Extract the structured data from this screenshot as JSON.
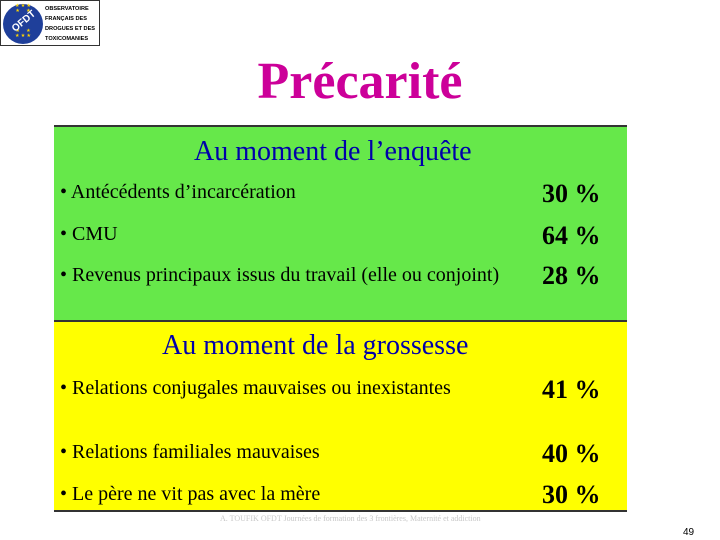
{
  "logo": {
    "monogram": "OFDT",
    "lines": [
      "OBSERVATOIRE",
      "FRANÇAIS DES",
      "DROGUES ET DES",
      "TOXICOMANIES"
    ]
  },
  "title": "Précarité",
  "sections": [
    {
      "heading": "Au moment de l’enquête",
      "items": [
        {
          "label": "• Antécédents d’incarcération",
          "value": "30 %"
        },
        {
          "label": "• CMU",
          "value": "64 %"
        },
        {
          "label": "• Revenus principaux issus du travail (elle ou conjoint)",
          "value": "28 %"
        }
      ]
    },
    {
      "heading": "Au moment de la grossesse",
      "items": [
        {
          "label": "• Relations conjugales mauvaises ou inexistantes",
          "value": "41 %"
        },
        {
          "label": "• Relations familiales mauvaises",
          "value": "40 %"
        },
        {
          "label": "• Le père ne vit pas avec la mère",
          "value": "30 %"
        }
      ]
    }
  ],
  "footer": "A. TOUFIK OFDT Journées de formation des 3 frontières, Maternité et addiction",
  "page_number": "49",
  "colors": {
    "title": "#cc0099",
    "heading": "#0000aa",
    "green_panel": "#66e84a",
    "yellow_panel": "#ffff00"
  }
}
